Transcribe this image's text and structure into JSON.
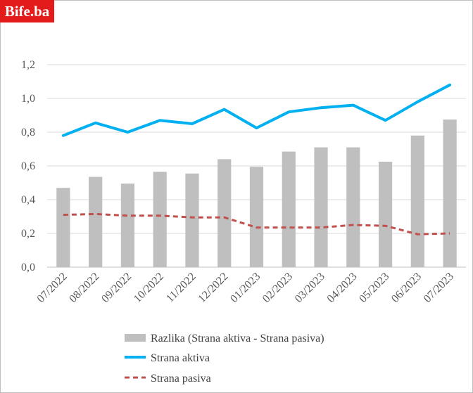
{
  "logo": {
    "text": "Bife.ba",
    "color": "#e31b1b"
  },
  "chart_data": {
    "type": "bar",
    "categories": [
      "07/2022",
      "08/2022",
      "09/2022",
      "10/2022",
      "11/2022",
      "12/2022",
      "01/2023",
      "02/2023",
      "03/2023",
      "04/2023",
      "05/2023",
      "06/2023",
      "07/2023"
    ],
    "ylim": [
      0,
      1.2
    ],
    "yticks": [
      "0,0",
      "0,2",
      "0,4",
      "0,6",
      "0,8",
      "1,0",
      "1,2"
    ],
    "yticks_values": [
      0,
      0.2,
      0.4,
      0.6,
      0.8,
      1.0,
      1.2
    ],
    "grid": true,
    "legend_position": "bottom",
    "series": [
      {
        "name": "Razlika (Strana aktiva - Strana pasiva)",
        "kind": "bar",
        "color": "#bfbfbf",
        "values": [
          0.47,
          0.535,
          0.495,
          0.565,
          0.555,
          0.64,
          0.595,
          0.685,
          0.71,
          0.71,
          0.625,
          0.78,
          0.875
        ]
      },
      {
        "name": "Strana aktiva",
        "kind": "line",
        "color": "#00b0f0",
        "values": [
          0.78,
          0.855,
          0.8,
          0.87,
          0.85,
          0.935,
          0.825,
          0.92,
          0.945,
          0.96,
          0.87,
          0.98,
          1.08
        ]
      },
      {
        "name": "Strana pasiva",
        "kind": "dashed-line",
        "color": "#c0504d",
        "values": [
          0.31,
          0.315,
          0.305,
          0.305,
          0.295,
          0.295,
          0.235,
          0.235,
          0.235,
          0.25,
          0.245,
          0.195,
          0.2
        ]
      }
    ]
  }
}
